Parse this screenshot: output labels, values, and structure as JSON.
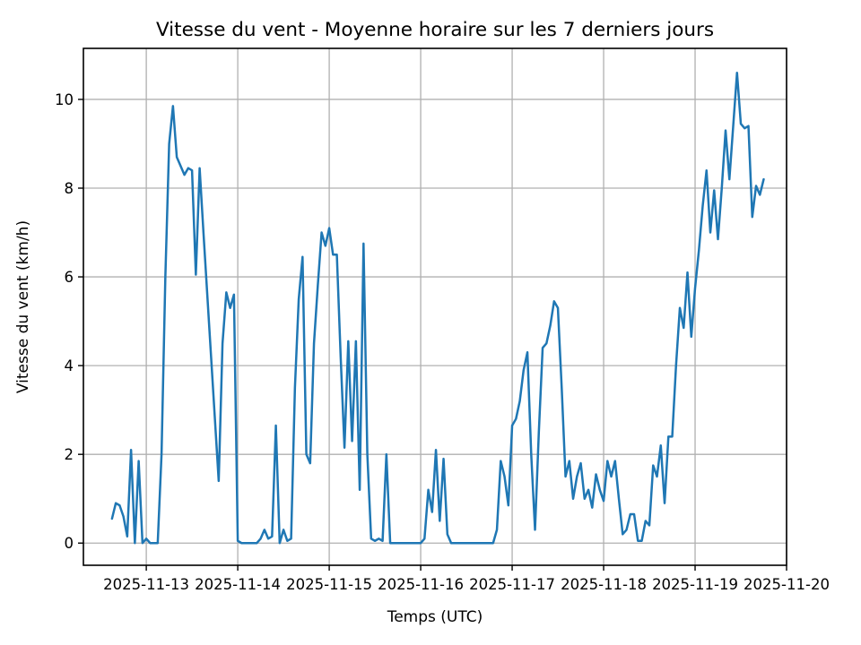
{
  "chart_data": {
    "type": "line",
    "title": "Vitesse du vent - Moyenne horaire sur les 7 derniers jours",
    "xlabel": "Temps (UTC)",
    "ylabel": "Vitesse du vent (km/h)",
    "line_color": "#1f77b4",
    "grid": true,
    "grid_color": "#b0b0b0",
    "spine_color": "#000000",
    "legend_position": "none",
    "x_start": "2025-11-12 15:00",
    "x_step_hours": 1,
    "x_tick_labels": [
      "2025-11-13",
      "2025-11-14",
      "2025-11-15",
      "2025-11-16",
      "2025-11-17",
      "2025-11-18",
      "2025-11-19",
      "2025-11-20"
    ],
    "x_tick_hours": [
      9,
      33,
      57,
      81,
      105,
      129,
      153,
      177
    ],
    "xlim_hours": [
      -7.5,
      177
    ],
    "y_ticks": [
      0,
      2,
      4,
      6,
      8,
      10
    ],
    "ylim": [
      -0.5,
      11.15
    ],
    "values": [
      0.55,
      0.9,
      0.85,
      0.6,
      0.15,
      2.1,
      0.0,
      1.85,
      0.0,
      0.1,
      0.0,
      0.0,
      0.0,
      2.0,
      6.0,
      9.0,
      9.85,
      8.7,
      8.5,
      8.3,
      8.45,
      8.4,
      6.05,
      8.45,
      7.0,
      5.6,
      4.2,
      2.8,
      1.4,
      4.5,
      5.65,
      5.3,
      5.6,
      0.05,
      0.0,
      0.0,
      0.0,
      0.0,
      0.0,
      0.1,
      0.3,
      0.1,
      0.15,
      2.65,
      0.0,
      0.3,
      0.05,
      0.1,
      3.5,
      5.5,
      6.45,
      2.0,
      1.8,
      4.5,
      5.8,
      7.0,
      6.7,
      7.1,
      6.5,
      6.5,
      4.2,
      2.15,
      4.55,
      2.3,
      4.55,
      1.2,
      6.75,
      2.0,
      0.1,
      0.05,
      0.1,
      0.05,
      2.0,
      0.0,
      0.0,
      0.0,
      0.0,
      0.0,
      0.0,
      0.0,
      0.0,
      0.0,
      0.1,
      1.2,
      0.7,
      2.1,
      0.5,
      1.9,
      0.2,
      0.0,
      0.0,
      0.0,
      0.0,
      0.0,
      0.0,
      0.0,
      0.0,
      0.0,
      0.0,
      0.0,
      0.0,
      0.3,
      1.85,
      1.5,
      0.85,
      2.65,
      2.8,
      3.2,
      3.9,
      4.3,
      2.0,
      0.3,
      2.5,
      4.4,
      4.5,
      4.9,
      5.45,
      5.3,
      3.5,
      1.5,
      1.85,
      1.0,
      1.5,
      1.8,
      1.0,
      1.2,
      0.8,
      1.55,
      1.2,
      0.95,
      1.85,
      1.5,
      1.85,
      1.0,
      0.2,
      0.3,
      0.65,
      0.65,
      0.05,
      0.05,
      0.5,
      0.4,
      1.75,
      1.5,
      2.2,
      0.9,
      2.4,
      2.4,
      4.0,
      5.3,
      4.85,
      6.1,
      4.65,
      5.75,
      6.6,
      7.6,
      8.4,
      7.0,
      7.95,
      6.85,
      8.0,
      9.3,
      8.2,
      9.4,
      10.6,
      9.45,
      9.35,
      9.4,
      7.35,
      8.05,
      7.85,
      8.2
    ]
  }
}
